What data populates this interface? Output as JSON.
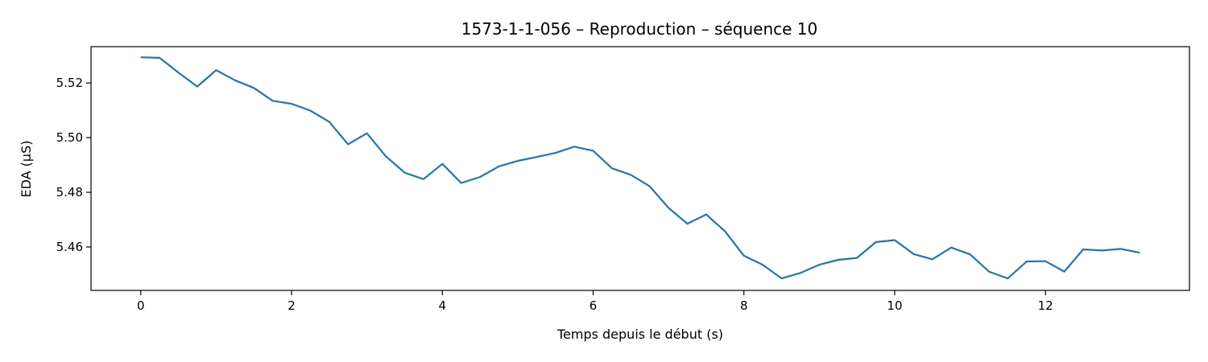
{
  "chart_data": {
    "type": "line",
    "title": "1573-1-1-056 – Reproduction – séquence 10",
    "xlabel": "Temps depuis le début (s)",
    "ylabel": "EDA (µS)",
    "xlim": [
      -0.66,
      13.91
    ],
    "ylim": [
      5.4441,
      5.5333
    ],
    "x_ticks": [
      0,
      2,
      4,
      6,
      8,
      10,
      12
    ],
    "x_tick_labels": [
      "0",
      "2",
      "4",
      "6",
      "8",
      "10",
      "12"
    ],
    "y_ticks": [
      5.46,
      5.48,
      5.5,
      5.52
    ],
    "y_tick_labels": [
      "5.46",
      "5.48",
      "5.50",
      "5.52"
    ],
    "grid": false,
    "series": [
      {
        "color": "#1f77b4",
        "x": [
          0,
          0.25,
          0.5,
          0.75,
          1.0,
          1.25,
          1.5,
          1.75,
          2.0,
          2.25,
          2.5,
          2.75,
          3.0,
          3.25,
          3.5,
          3.75,
          4.0,
          4.25,
          4.5,
          4.75,
          5.0,
          5.25,
          5.5,
          5.75,
          6.0,
          6.25,
          6.5,
          6.75,
          7.0,
          7.25,
          7.5,
          7.75,
          8.0,
          8.25,
          8.5,
          8.75,
          9.0,
          9.25,
          9.5,
          9.75,
          10.0,
          10.25,
          10.5,
          10.75,
          11.0,
          11.25,
          11.5,
          11.75,
          12.0,
          12.25,
          12.5,
          12.75,
          13.0,
          13.25
        ],
        "y": [
          5.5294,
          5.5292,
          5.5238,
          5.5187,
          5.5247,
          5.521,
          5.5182,
          5.5135,
          5.5124,
          5.5099,
          5.5058,
          5.4976,
          5.5016,
          5.4932,
          5.4872,
          5.4848,
          5.4904,
          5.4834,
          5.4856,
          5.4895,
          5.4915,
          5.4929,
          5.4944,
          5.4967,
          5.4952,
          5.4888,
          5.4864,
          5.4822,
          5.4743,
          5.4685,
          5.4719,
          5.4657,
          5.4568,
          5.4535,
          5.4485,
          5.4505,
          5.4535,
          5.4553,
          5.456,
          5.4618,
          5.4625,
          5.4574,
          5.4555,
          5.4598,
          5.4573,
          5.451,
          5.4485,
          5.4547,
          5.4548,
          5.451,
          5.4591,
          5.4587,
          5.4593,
          5.4579
        ]
      }
    ]
  }
}
